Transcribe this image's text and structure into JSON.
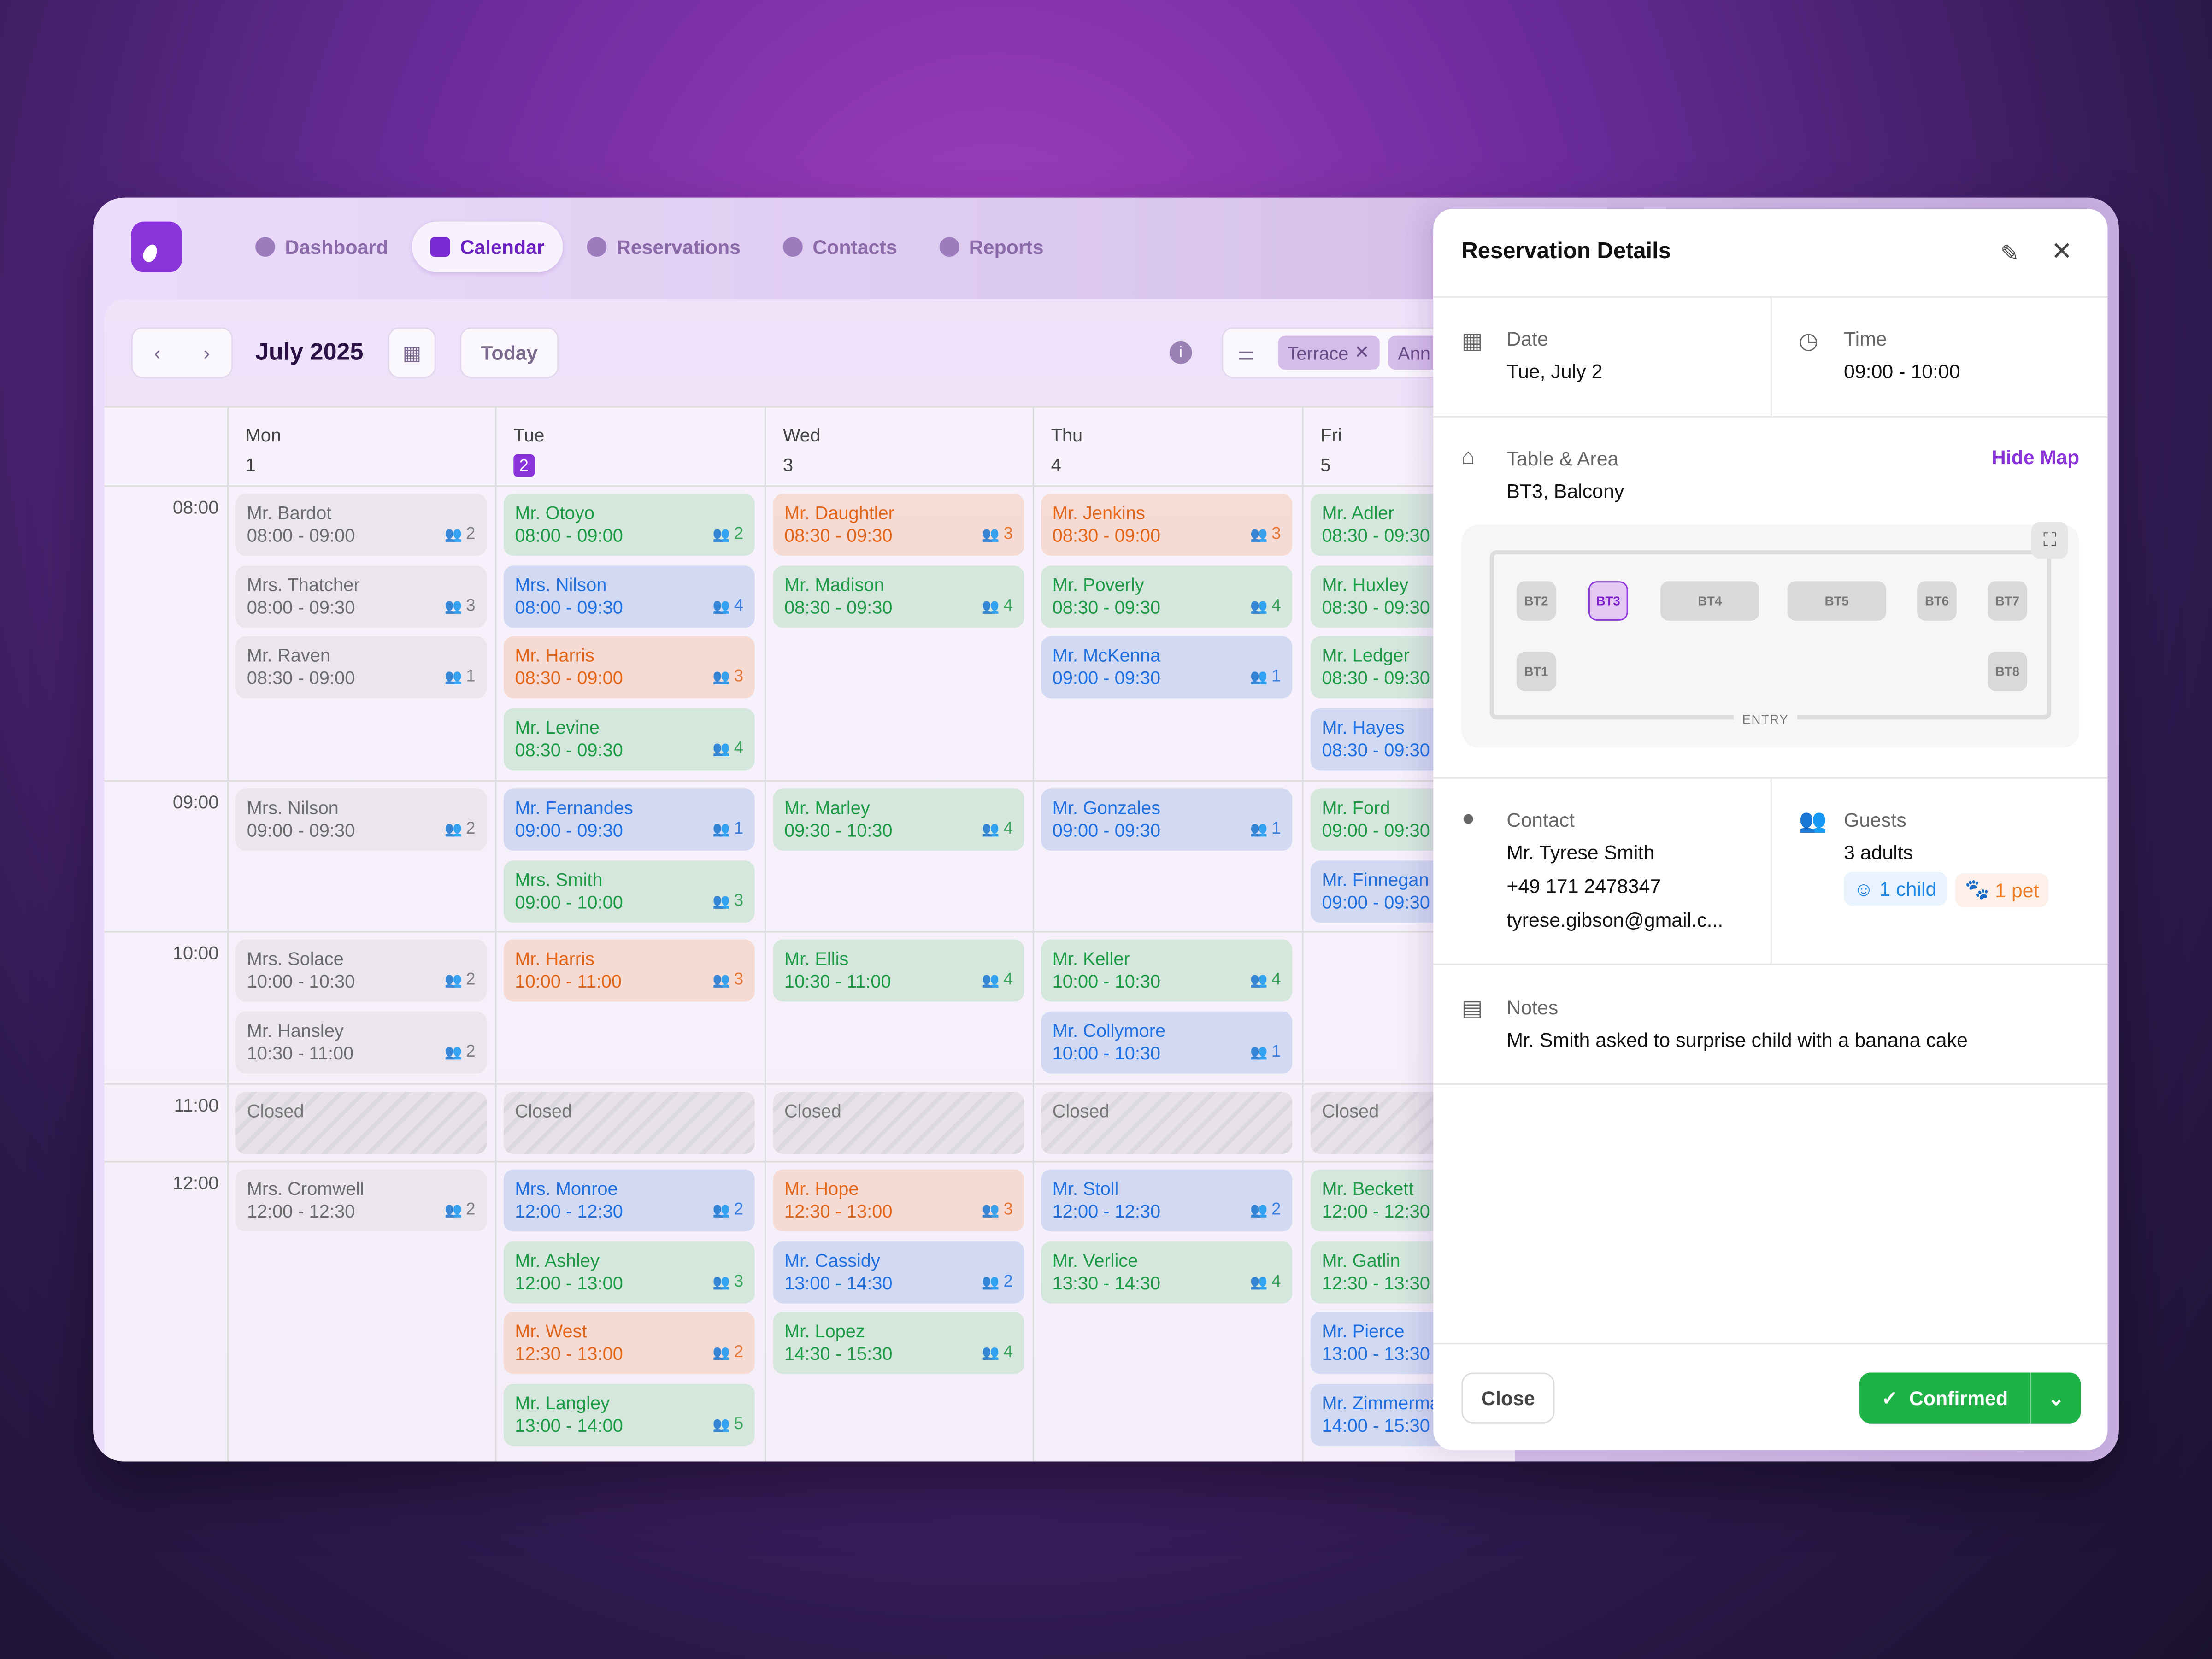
{
  "nav": {
    "tabs": [
      {
        "label": "Dashboard",
        "icon": "compass-icon"
      },
      {
        "label": "Calendar",
        "icon": "calendar-icon",
        "active": true
      },
      {
        "label": "Reservations",
        "icon": "cloche-icon"
      },
      {
        "label": "Contacts",
        "icon": "users-icon"
      },
      {
        "label": "Reports",
        "icon": "chart-icon"
      }
    ]
  },
  "toolbar": {
    "month": "July 2025",
    "today": "Today",
    "filters": [
      "Terrace",
      "Ann"
    ]
  },
  "calendar": {
    "hours": [
      "08:00",
      "09:00",
      "10:00",
      "11:00",
      "12:00"
    ],
    "days": [
      {
        "name": "Mon",
        "num": "1",
        "slots": [
          [
            {
              "n": "Mr. Bardot",
              "t": "08:00 - 09:00",
              "g": "2",
              "c": "gray"
            },
            {
              "n": "Mrs. Thatcher",
              "t": "08:00 - 09:30",
              "g": "3",
              "c": "gray"
            },
            {
              "n": "Mr. Raven",
              "t": "08:30 - 09:00",
              "g": "1",
              "c": "gray"
            }
          ],
          [
            {
              "n": "Mrs. Nilson",
              "t": "09:00 - 09:30",
              "g": "2",
              "c": "gray"
            }
          ],
          [
            {
              "n": "Mrs. Solace",
              "t": "10:00 - 10:30",
              "g": "2",
              "c": "gray"
            },
            {
              "n": "Mr. Hansley",
              "t": "10:30 - 11:00",
              "g": "2",
              "c": "gray"
            }
          ],
          [
            {
              "n": "Closed",
              "c": "closed"
            }
          ],
          [
            {
              "n": "Mrs. Cromwell",
              "t": "12:00 - 12:30",
              "g": "2",
              "c": "gray"
            }
          ]
        ]
      },
      {
        "name": "Tue",
        "num": "2",
        "today": true,
        "slots": [
          [
            {
              "n": "Mr. Otoyo",
              "t": "08:00 - 09:00",
              "g": "2",
              "c": "green"
            },
            {
              "n": "Mrs. Nilson",
              "t": "08:00 - 09:30",
              "g": "4",
              "c": "blue"
            },
            {
              "n": "Mr. Harris",
              "t": "08:30 - 09:00",
              "g": "3",
              "c": "orange"
            },
            {
              "n": "Mr. Levine",
              "t": "08:30 - 09:30",
              "g": "4",
              "c": "green"
            }
          ],
          [
            {
              "n": "Mr. Fernandes",
              "t": "09:00 - 09:30",
              "g": "1",
              "c": "blue"
            },
            {
              "n": "Mrs. Smith",
              "t": "09:00 - 10:00",
              "g": "3",
              "c": "green"
            }
          ],
          [
            {
              "n": "Mr. Harris",
              "t": "10:00 - 11:00",
              "g": "3",
              "c": "orange"
            }
          ],
          [
            {
              "n": "Closed",
              "c": "closed"
            }
          ],
          [
            {
              "n": "Mrs. Monroe",
              "t": "12:00 - 12:30",
              "g": "2",
              "c": "blue"
            },
            {
              "n": "Mr. Ashley",
              "t": "12:00 - 13:00",
              "g": "3",
              "c": "green"
            },
            {
              "n": "Mr. West",
              "t": "12:30 - 13:00",
              "g": "2",
              "c": "orange"
            },
            {
              "n": "Mr. Langley",
              "t": "13:00 - 14:00",
              "g": "5",
              "c": "green"
            }
          ]
        ]
      },
      {
        "name": "Wed",
        "num": "3",
        "slots": [
          [
            {
              "n": "Mr. Daughtler",
              "t": "08:30 - 09:30",
              "g": "3",
              "c": "orange"
            },
            {
              "n": "Mr. Madison",
              "t": "08:30 - 09:30",
              "g": "4",
              "c": "green"
            }
          ],
          [
            {
              "n": "Mr. Marley",
              "t": "09:30 - 10:30",
              "g": "4",
              "c": "green"
            }
          ],
          [
            {
              "n": "Mr. Ellis",
              "t": "10:30 - 11:00",
              "g": "4",
              "c": "green"
            }
          ],
          [
            {
              "n": "Closed",
              "c": "closed"
            }
          ],
          [
            {
              "n": "Mr. Hope",
              "t": "12:30 - 13:00",
              "g": "3",
              "c": "orange"
            },
            {
              "n": "Mr. Cassidy",
              "t": "13:00 - 14:30",
              "g": "2",
              "c": "blue"
            },
            {
              "n": "Mr. Lopez",
              "t": "14:30 - 15:30",
              "g": "4",
              "c": "green"
            }
          ]
        ]
      },
      {
        "name": "Thu",
        "num": "4",
        "slots": [
          [
            {
              "n": "Mr. Jenkins",
              "t": "08:30 - 09:00",
              "g": "3",
              "c": "orange"
            },
            {
              "n": "Mr. Poverly",
              "t": "08:30 - 09:30",
              "g": "4",
              "c": "green"
            },
            {
              "n": "Mr. McKenna",
              "t": "09:00 - 09:30",
              "g": "1",
              "c": "blue"
            }
          ],
          [
            {
              "n": "Mr. Gonzales",
              "t": "09:00 - 09:30",
              "g": "1",
              "c": "blue"
            }
          ],
          [
            {
              "n": "Mr. Keller",
              "t": "10:00 - 10:30",
              "g": "4",
              "c": "green"
            },
            {
              "n": "Mr. Collymore",
              "t": "10:00 - 10:30",
              "g": "1",
              "c": "blue"
            }
          ],
          [
            {
              "n": "Closed",
              "c": "closed"
            }
          ],
          [
            {
              "n": "Mr. Stoll",
              "t": "12:00 - 12:30",
              "g": "2",
              "c": "blue"
            },
            {
              "n": "Mr. Verlice",
              "t": "13:30 - 14:30",
              "g": "4",
              "c": "green"
            }
          ]
        ]
      },
      {
        "name": "Fri",
        "num": "5",
        "slots": [
          [
            {
              "n": "Mr. Adler",
              "t": "08:30 - 09:30",
              "c": "green"
            },
            {
              "n": "Mr. Huxley",
              "t": "08:30 - 09:30",
              "c": "green"
            },
            {
              "n": "Mr. Ledger",
              "t": "08:30 - 09:30",
              "c": "green"
            },
            {
              "n": "Mr. Hayes",
              "t": "08:30 - 09:30",
              "c": "blue"
            }
          ],
          [
            {
              "n": "Mr. Ford",
              "t": "09:00 - 09:30",
              "c": "green"
            },
            {
              "n": "Mr. Finnegan",
              "t": "09:00 - 09:30",
              "c": "blue"
            }
          ],
          [],
          [
            {
              "n": "Closed",
              "c": "closed"
            }
          ],
          [
            {
              "n": "Mr. Beckett",
              "t": "12:00 - 12:30",
              "c": "green"
            },
            {
              "n": "Mr. Gatlin",
              "t": "12:30 - 13:30",
              "c": "green"
            },
            {
              "n": "Mr. Pierce",
              "t": "13:00 - 13:30",
              "c": "blue"
            },
            {
              "n": "Mr. Zimmerman",
              "t": "14:00 - 15:30",
              "c": "blue"
            }
          ]
        ]
      }
    ]
  },
  "panel": {
    "title": "Reservation Details",
    "date": {
      "label": "Date",
      "value": "Tue, July 2"
    },
    "time": {
      "label": "Time",
      "value": "09:00 - 10:00"
    },
    "table": {
      "label": "Table & Area",
      "value": "BT3, Balcony",
      "hide_map": "Hide Map"
    },
    "map": {
      "tables": [
        "BT1",
        "BT2",
        "BT3",
        "BT4",
        "BT5",
        "BT6",
        "BT7",
        "BT8"
      ],
      "selected": "BT3",
      "entry": "ENTRY"
    },
    "contact": {
      "label": "Contact",
      "name": "Mr. Tyrese Smith",
      "phone": "+49 171 2478347",
      "email": "tyrese.gibson@gmail.c..."
    },
    "guests": {
      "label": "Guests",
      "adults": "3 adults",
      "child": "1 child",
      "pet": "1 pet"
    },
    "notes": {
      "label": "Notes",
      "value": "Mr. Smith asked to surprise child with a banana cake"
    },
    "close": "Close",
    "status": "Confirmed"
  },
  "colors": {
    "accent": "#8b34dc",
    "green": "#1d9a45",
    "orange": "#e2661a",
    "blue": "#1f6fe0",
    "confirm": "#1fb246"
  }
}
